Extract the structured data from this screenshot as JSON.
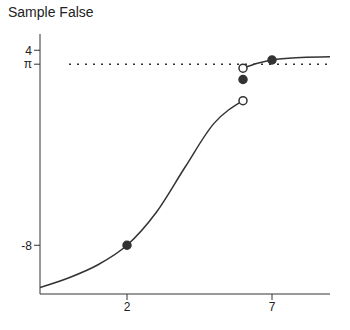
{
  "chart_data": {
    "type": "line",
    "title": "Sample False",
    "xlim": [
      -1,
      9
    ],
    "ylim": [
      -11,
      5
    ],
    "xticks": [
      2,
      7
    ],
    "yticks": [
      -8,
      {
        "value": 3.14159,
        "label": "π"
      },
      4
    ],
    "grid": false,
    "series": [
      {
        "type": "line",
        "color": "#333333",
        "line_style": "solid",
        "x": [
          -1,
          0,
          1,
          2,
          3,
          4,
          5,
          6
        ],
        "values": [
          -10.6,
          -10,
          -9.2,
          -8,
          -6,
          -3.2,
          -0.5,
          0.9
        ]
      },
      {
        "type": "line",
        "color": "#333333",
        "line_style": "solid",
        "x": [
          6,
          6.5,
          7,
          8,
          9
        ],
        "values": [
          2.9,
          3.2,
          3.4,
          3.55,
          3.6
        ]
      },
      {
        "type": "line",
        "color": "#333333",
        "line_style": "dotted",
        "x": [
          0,
          9
        ],
        "values": [
          3.14159,
          3.14159
        ]
      },
      {
        "type": "scatter",
        "color": "#333333",
        "marker": "closed",
        "x": [
          2,
          6,
          7
        ],
        "values": [
          -8,
          2.2,
          3.4
        ]
      },
      {
        "type": "scatter",
        "color": "#333333",
        "marker": "open",
        "x": [
          6,
          6
        ],
        "values": [
          0.9,
          2.9
        ]
      }
    ]
  }
}
